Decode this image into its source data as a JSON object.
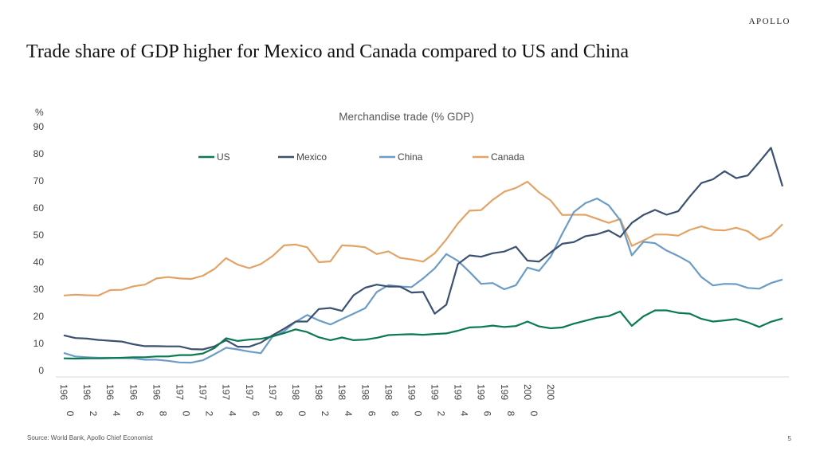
{
  "header": {
    "brand": "APOLLO",
    "title": "Trade share of GDP higher for Mexico and Canada compared to US and China"
  },
  "footer": {
    "source": "Source: World Bank, Apollo Chief Economist",
    "page_number": "5"
  },
  "chart_data": {
    "type": "line",
    "title": "Merchandise trade (% GDP)",
    "ylabel": "%",
    "xlabel": "",
    "ylim": [
      0,
      90
    ],
    "yticks": [
      0,
      10,
      20,
      30,
      40,
      50,
      60,
      70,
      80,
      90
    ],
    "xticks": [
      {
        "year": 1960,
        "line1": "196",
        "line2": "0"
      },
      {
        "year": 1962,
        "line1": "196",
        "line2": "2"
      },
      {
        "year": 1964,
        "line1": "196",
        "line2": "4"
      },
      {
        "year": 1966,
        "line1": "196",
        "line2": "6"
      },
      {
        "year": 1968,
        "line1": "196",
        "line2": "8"
      },
      {
        "year": 1970,
        "line1": "197",
        "line2": "0"
      },
      {
        "year": 1972,
        "line1": "197",
        "line2": "2"
      },
      {
        "year": 1974,
        "line1": "197",
        "line2": "4"
      },
      {
        "year": 1976,
        "line1": "197",
        "line2": "6"
      },
      {
        "year": 1978,
        "line1": "197",
        "line2": "8"
      },
      {
        "year": 1980,
        "line1": "198",
        "line2": "0"
      },
      {
        "year": 1982,
        "line1": "198",
        "line2": "2"
      },
      {
        "year": 1984,
        "line1": "198",
        "line2": "4"
      },
      {
        "year": 1986,
        "line1": "198",
        "line2": "6"
      },
      {
        "year": 1988,
        "line1": "198",
        "line2": "8"
      },
      {
        "year": 1990,
        "line1": "199",
        "line2": "0"
      },
      {
        "year": 1992,
        "line1": "199",
        "line2": "2"
      },
      {
        "year": 1994,
        "line1": "199",
        "line2": "4"
      },
      {
        "year": 1996,
        "line1": "199",
        "line2": "6"
      },
      {
        "year": 1998,
        "line1": "199",
        "line2": "8"
      },
      {
        "year": 2000,
        "line1": "200",
        "line2": "0"
      },
      {
        "year": 2002,
        "line1": "200",
        "line2": ""
      }
    ],
    "legend_position": "top",
    "x": [
      1960,
      1961,
      1962,
      1963,
      1964,
      1965,
      1966,
      1967,
      1968,
      1969,
      1970,
      1971,
      1972,
      1973,
      1974,
      1975,
      1976,
      1977,
      1978,
      1979,
      1980,
      1981,
      1982,
      1983,
      1984,
      1985,
      1986,
      1987,
      1988,
      1989,
      1990,
      1991,
      1992,
      1993,
      1994,
      1995,
      1996,
      1997,
      1998,
      1999,
      2000,
      2001,
      2002,
      2003,
      2004,
      2005,
      2006,
      2007,
      2008,
      2009,
      2010
    ],
    "series": [
      {
        "name": "US",
        "color": "#0b7a52",
        "values": [
          4.5,
          4.4,
          4.5,
          4.5,
          4.6,
          4.7,
          4.9,
          4.9,
          5.2,
          5.2,
          5.7,
          5.7,
          6.3,
          8.3,
          11.9,
          10.9,
          11.4,
          11.7,
          12.6,
          13.8,
          15.2,
          14.2,
          12.3,
          11.2,
          12.2,
          11.2,
          11.4,
          12.1,
          13.1,
          13.3,
          13.4,
          13.2,
          13.5,
          13.7,
          14.7,
          15.9,
          16.1,
          16.6,
          16.1,
          16.4,
          18.1,
          16.3,
          15.6,
          15.9,
          17.3,
          18.4,
          19.5,
          20.1,
          21.8,
          16.5,
          20
        ]
      },
      {
        "name": "Mexico",
        "color": "#3b5170",
        "values": [
          13,
          12,
          11.8,
          11.3,
          11,
          10.7,
          9.7,
          9,
          9,
          8.9,
          8.9,
          7.9,
          7.8,
          8.9,
          11.2,
          8.8,
          8.8,
          10.3,
          13,
          15.4,
          18.1,
          18.1,
          22.7,
          23.1,
          22,
          27.8,
          30.6,
          31.7,
          31,
          31,
          28.8,
          29,
          21,
          24.3,
          39.3,
          42.5,
          42,
          43.3,
          43.9,
          45.7,
          40.6,
          40.2,
          43.6,
          46.8,
          47.4,
          49.6,
          50.3,
          51.7,
          49.3,
          54.5,
          57.4
        ]
      },
      {
        "name": "China",
        "color": "#6b9cc6",
        "values": [
          6.5,
          5.2,
          4.9,
          4.7,
          4.7,
          4.6,
          4.5,
          4,
          4,
          3.6,
          3,
          2.9,
          3.8,
          6,
          8.4,
          7.8,
          7,
          6.4,
          12.5,
          14.5,
          18,
          20.5,
          18.5,
          17,
          19,
          21,
          23,
          29,
          31.5,
          31,
          30.8,
          34,
          37.7,
          43,
          40.5,
          36.4,
          32,
          32.3,
          30,
          31.5,
          38,
          36.8,
          42,
          50.5,
          58.5,
          61.8,
          63.5,
          61,
          55.5,
          42.5,
          47.5
        ]
      },
      {
        "name": "Canada",
        "color": "#e3a366",
        "values": [
          27.7,
          28,
          27.8,
          27.7,
          29.7,
          29.8,
          31.1,
          31.7,
          34,
          34.5,
          34,
          33.8,
          35,
          37.5,
          41.5,
          39.1,
          37.8,
          39.3,
          42.2,
          46.2,
          46.5,
          45.5,
          40,
          40.3,
          46.2,
          46,
          45.5,
          43,
          44,
          41.6,
          41,
          40.2,
          43.3,
          48.4,
          54.3,
          59,
          59.2,
          63,
          66,
          67.4,
          69.7,
          65.7,
          62.8,
          57.4,
          57.5,
          57.5,
          56,
          54.5,
          55.9,
          46,
          48
        ]
      }
    ],
    "series_tail": [
      {
        "name": "US",
        "x": [
          2011,
          2012,
          2013,
          2014,
          2015,
          2016,
          2017,
          2018,
          2019,
          2020,
          2021,
          2022
        ],
        "values": [
          22.2,
          22.2,
          21.3,
          21,
          19.1,
          18.1,
          18.5,
          19,
          17.8,
          16.1,
          18,
          19.2
        ]
      },
      {
        "name": "Mexico",
        "x": [
          2011,
          2012,
          2013,
          2014,
          2015,
          2016,
          2017,
          2018,
          2019,
          2020,
          2021,
          2022
        ],
        "values": [
          59.3,
          57.5,
          58.8,
          64.2,
          69.2,
          70.6,
          73.6,
          71,
          72,
          77,
          82.2,
          68
        ]
      },
      {
        "name": "China",
        "x": [
          2011,
          2012,
          2013,
          2014,
          2015,
          2016,
          2017,
          2018,
          2019,
          2020,
          2021,
          2022
        ],
        "values": [
          47,
          44.3,
          42.3,
          39.9,
          34.5,
          31.4,
          32,
          31.9,
          30.5,
          30.2,
          32.3,
          33.6
        ]
      },
      {
        "name": "Canada",
        "x": [
          2011,
          2012,
          2013,
          2014,
          2015,
          2016,
          2017,
          2018,
          2019,
          2020,
          2021,
          2022
        ],
        "values": [
          50.2,
          50.2,
          49.8,
          51.9,
          53.2,
          51.9,
          51.7,
          52.7,
          51.4,
          48.3,
          49.8,
          54
        ]
      }
    ]
  }
}
